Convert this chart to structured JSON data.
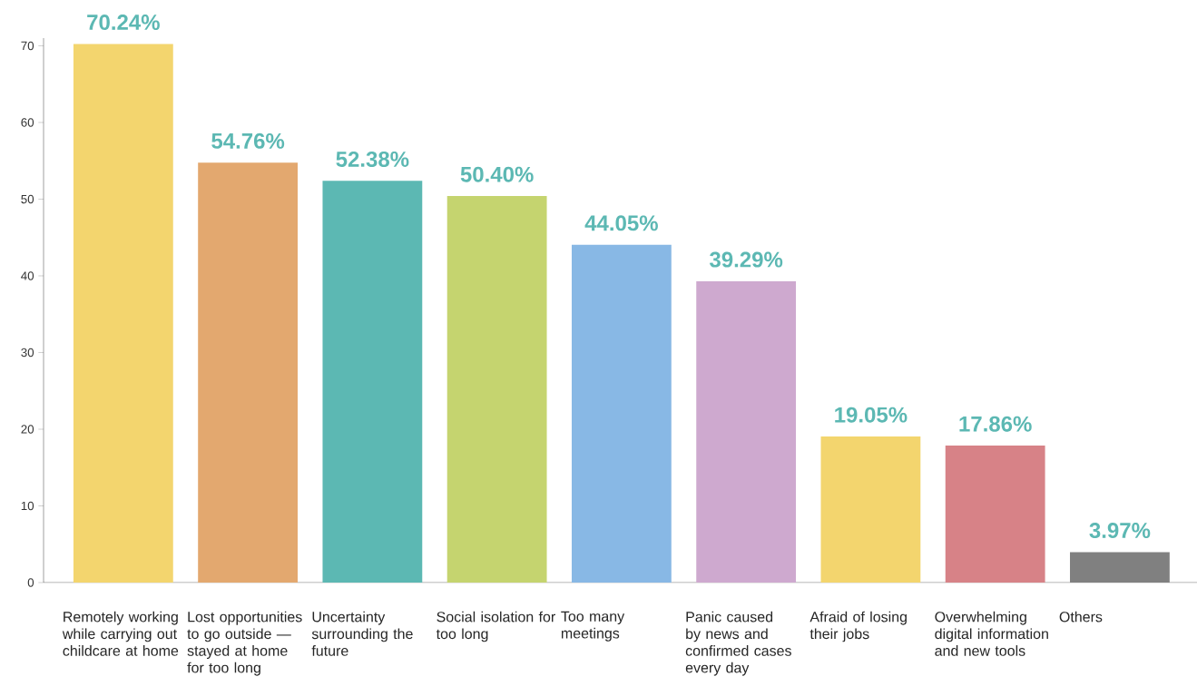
{
  "chart_data": {
    "type": "bar",
    "categories": [
      "Remotely working while carrying out childcare at home",
      "Lost opportunities to go outside — stayed at home for too long",
      "Uncertainty surrounding the future",
      "Social isolation for too long",
      "Too many meetings",
      "Panic caused by news and confirmed cases every day",
      "Afraid of losing their jobs",
      "Overwhelming digital information and new tools",
      "Others"
    ],
    "values": [
      70.24,
      54.76,
      52.38,
      50.4,
      44.05,
      39.29,
      19.05,
      17.86,
      3.97
    ],
    "value_labels": [
      "70.24%",
      "54.76%",
      "52.38%",
      "50.40%",
      "44.05%",
      "39.29%",
      "19.05%",
      "17.86%",
      "3.97%"
    ],
    "colors": [
      "#f3d56e",
      "#e3a86f",
      "#5cb8b3",
      "#c5d46f",
      "#88b8e5",
      "#cea9cf",
      "#f3d56e",
      "#d78287",
      "#808080"
    ],
    "ylim": [
      0,
      71
    ],
    "yticks": [
      0,
      10,
      20,
      30,
      40,
      50,
      60,
      70
    ],
    "grid": false
  }
}
